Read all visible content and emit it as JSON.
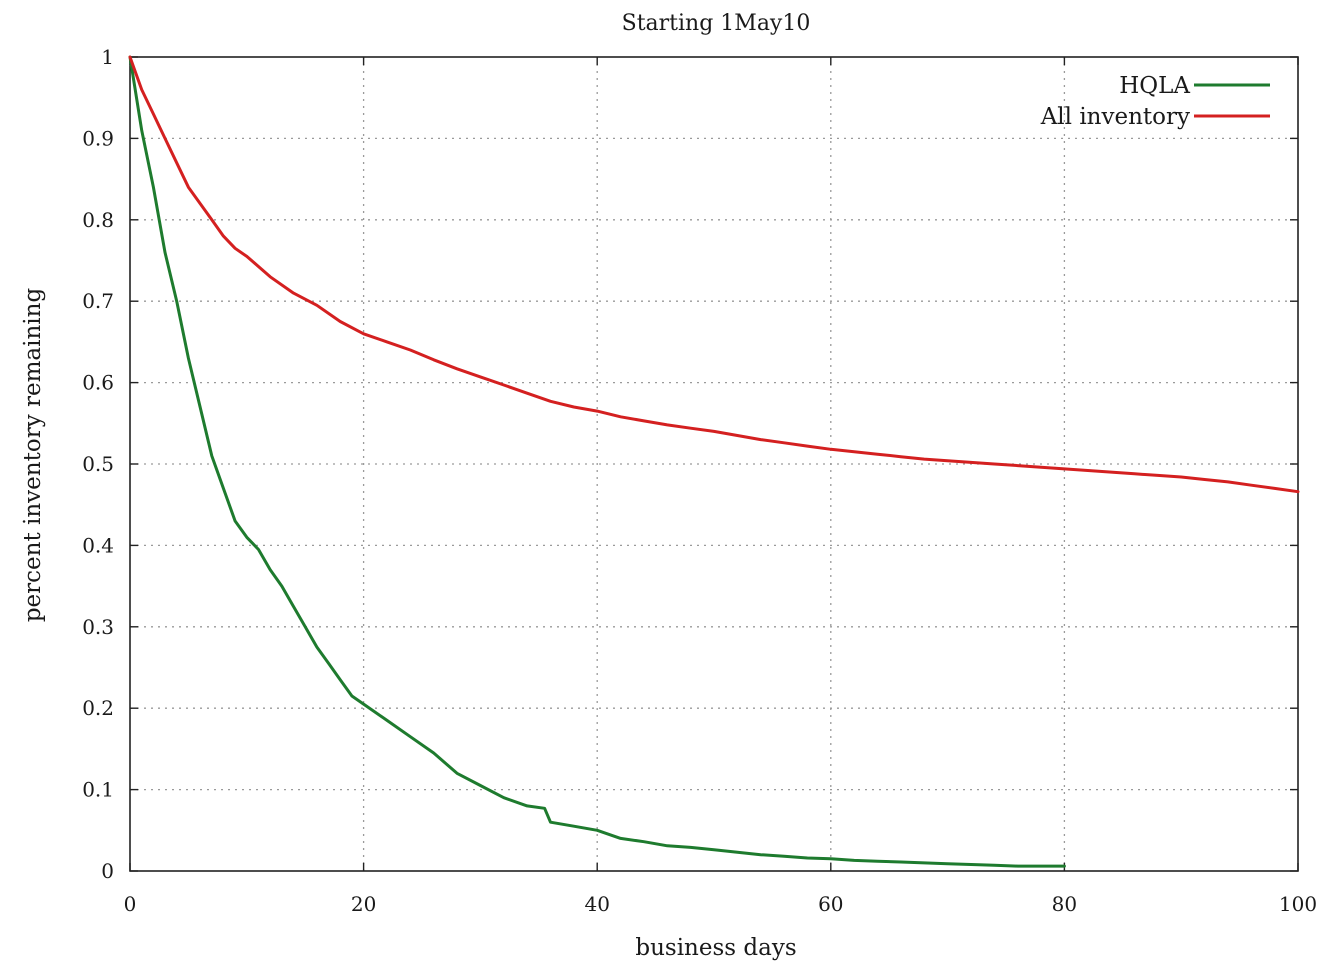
{
  "chart_data": {
    "type": "line",
    "title": "Starting 1May10",
    "xlabel": "business days",
    "ylabel": "percent inventory remaining",
    "xlim": [
      0,
      100
    ],
    "ylim": [
      0,
      1
    ],
    "x_ticks": [
      0,
      20,
      40,
      60,
      80,
      100
    ],
    "x_tick_labels": [
      "0",
      "20",
      "40",
      "60",
      "80",
      "100"
    ],
    "y_ticks": [
      0,
      0.1,
      0.2,
      0.3,
      0.4,
      0.5,
      0.6,
      0.7,
      0.8,
      0.9,
      1
    ],
    "y_tick_labels": [
      "0",
      "0.1",
      "0.2",
      "0.3",
      "0.4",
      "0.5",
      "0.6",
      "0.7",
      "0.8",
      "0.9",
      "1"
    ],
    "grid": true,
    "legend": "top-right",
    "series": [
      {
        "name": "HQLA",
        "color": "#1e7b2e",
        "x": [
          0,
          1,
          2,
          3,
          4,
          5,
          6,
          7,
          8,
          9,
          10,
          11,
          12,
          13,
          14,
          15,
          16,
          17,
          18,
          19,
          20,
          22,
          24,
          26,
          28,
          30,
          32,
          34,
          35.5,
          36,
          38,
          40,
          42,
          44,
          46,
          48,
          50,
          52,
          54,
          56,
          58,
          60,
          62,
          64,
          66,
          68,
          70,
          72,
          74,
          76,
          78,
          80
        ],
        "y": [
          1,
          0.91,
          0.84,
          0.76,
          0.7,
          0.63,
          0.57,
          0.51,
          0.47,
          0.43,
          0.41,
          0.395,
          0.37,
          0.35,
          0.325,
          0.3,
          0.275,
          0.255,
          0.235,
          0.215,
          0.205,
          0.185,
          0.165,
          0.145,
          0.12,
          0.105,
          0.09,
          0.08,
          0.077,
          0.06,
          0.055,
          0.05,
          0.04,
          0.036,
          0.031,
          0.029,
          0.026,
          0.023,
          0.02,
          0.018,
          0.016,
          0.015,
          0.013,
          0.012,
          0.011,
          0.01,
          0.009,
          0.008,
          0.007,
          0.006,
          0.006,
          0.006
        ]
      },
      {
        "name": "All inventory",
        "color": "#d42020",
        "x": [
          0,
          1,
          2,
          3,
          4,
          5,
          6,
          7,
          8,
          9,
          10,
          12,
          14,
          16,
          18,
          20,
          22,
          24,
          26,
          28,
          30,
          32,
          34,
          36,
          38,
          40,
          42,
          44,
          46,
          48,
          50,
          52,
          54,
          56,
          58,
          60,
          62,
          64,
          66,
          68,
          70,
          72,
          74,
          76,
          78,
          80,
          82,
          84,
          86,
          88,
          90,
          92,
          94,
          96,
          98,
          100
        ],
        "y": [
          1,
          0.96,
          0.93,
          0.9,
          0.87,
          0.84,
          0.82,
          0.8,
          0.78,
          0.765,
          0.755,
          0.73,
          0.71,
          0.695,
          0.675,
          0.66,
          0.65,
          0.64,
          0.628,
          0.617,
          0.607,
          0.597,
          0.587,
          0.577,
          0.57,
          0.565,
          0.558,
          0.553,
          0.548,
          0.544,
          0.54,
          0.535,
          0.53,
          0.526,
          0.522,
          0.518,
          0.515,
          0.512,
          0.509,
          0.506,
          0.504,
          0.502,
          0.5,
          0.498,
          0.496,
          0.494,
          0.492,
          0.49,
          0.488,
          0.486,
          0.484,
          0.481,
          0.478,
          0.474,
          0.47,
          0.466
        ]
      }
    ]
  }
}
